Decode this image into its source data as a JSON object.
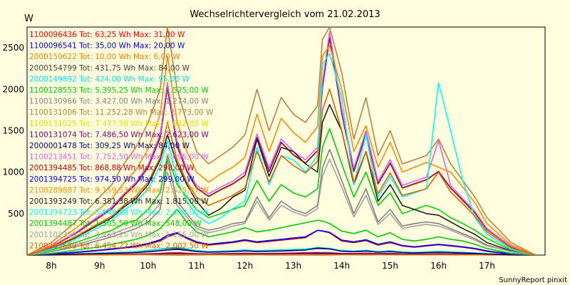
{
  "chart_data": {
    "type": "line",
    "title": "Wechselrichtervergleich vom 21.02.2013",
    "ylabel": "W",
    "xlabel": "",
    "footer": "SunnyReport pinxit",
    "ylim": [
      0,
      2750
    ],
    "xlim": [
      7.5,
      18.2
    ],
    "yticks": [
      500,
      1000,
      1500,
      2000,
      2500
    ],
    "xticks": [
      {
        "v": 8,
        "label": "8h"
      },
      {
        "v": 9,
        "label": "9h"
      },
      {
        "v": 10,
        "label": "10h"
      },
      {
        "v": 11,
        "label": "11h"
      },
      {
        "v": 12,
        "label": "12h"
      },
      {
        "v": 13,
        "label": "13h"
      },
      {
        "v": 14,
        "label": "14h"
      },
      {
        "v": 15,
        "label": "15h"
      },
      {
        "v": 16,
        "label": "16h"
      },
      {
        "v": 17,
        "label": "17h"
      }
    ],
    "grid": true,
    "x": [
      7.5,
      8.0,
      8.5,
      9.0,
      9.25,
      9.5,
      9.75,
      10.0,
      10.25,
      10.4,
      10.6,
      10.8,
      11.0,
      11.25,
      11.5,
      11.75,
      12.0,
      12.25,
      12.5,
      12.75,
      13.0,
      13.25,
      13.5,
      13.6,
      13.75,
      14.0,
      14.25,
      14.5,
      14.75,
      15.0,
      15.25,
      15.5,
      15.75,
      16.0,
      16.25,
      16.5,
      16.75,
      17.0,
      17.5,
      18.0
    ],
    "series": [
      {
        "name": "1100096436",
        "legend": "1100096436 Tot: 63,25 Wh Max: 31,00 W",
        "color": "#ff0000",
        "values": [
          0,
          2,
          4,
          6,
          8,
          10,
          12,
          15,
          20,
          25,
          28,
          22,
          16,
          14,
          16,
          18,
          22,
          18,
          20,
          22,
          24,
          28,
          31,
          30,
          28,
          20,
          18,
          22,
          16,
          20,
          14,
          12,
          14,
          16,
          14,
          12,
          10,
          6,
          2,
          0
        ]
      },
      {
        "name": "1100096541",
        "legend": "1100096541 Tot: 35,00 Wh Max: 20,00 W",
        "color": "#0000cc",
        "values": [
          0,
          1,
          2,
          4,
          5,
          6,
          7,
          9,
          12,
          15,
          18,
          14,
          10,
          9,
          10,
          11,
          13,
          11,
          12,
          13,
          15,
          17,
          20,
          19,
          18,
          12,
          10,
          13,
          10,
          12,
          9,
          8,
          9,
          10,
          9,
          8,
          6,
          4,
          1,
          0
        ]
      },
      {
        "name": "2000150622",
        "legend": "2000150622 Tot: 10,00 Wh Max: 6,00 W",
        "color": "#ff8000",
        "values": [
          0,
          0,
          1,
          1,
          2,
          2,
          3,
          3,
          4,
          5,
          6,
          5,
          4,
          3,
          3,
          4,
          4,
          3,
          4,
          4,
          5,
          5,
          6,
          6,
          5,
          3,
          3,
          4,
          3,
          3,
          2,
          2,
          2,
          3,
          2,
          2,
          2,
          1,
          0,
          0
        ]
      },
      {
        "name": "2000154799",
        "legend": "2000154799 Tot: 431,75 Wh Max: 84,00 W",
        "color": "#404040",
        "values": [
          0,
          5,
          15,
          25,
          30,
          35,
          40,
          55,
          70,
          80,
          84,
          70,
          50,
          40,
          45,
          50,
          60,
          50,
          55,
          60,
          65,
          70,
          80,
          78,
          75,
          50,
          45,
          55,
          40,
          50,
          35,
          30,
          35,
          40,
          35,
          30,
          25,
          15,
          5,
          0
        ]
      },
      {
        "name": "2000149892",
        "legend": "2000149892 Tot: 424,00 Wh Max: 95,00 W",
        "color": "#00e0e0",
        "values": [
          0,
          5,
          15,
          25,
          30,
          35,
          42,
          55,
          70,
          85,
          95,
          75,
          55,
          42,
          48,
          52,
          62,
          52,
          58,
          62,
          68,
          74,
          90,
          88,
          82,
          55,
          48,
          58,
          42,
          52,
          38,
          32,
          38,
          45,
          38,
          32,
          26,
          16,
          5,
          0
        ]
      },
      {
        "name": "1100128553",
        "legend": "1100128553 Tot: 5.395,25 Wh Max: 1.525,00 W",
        "color": "#00d000",
        "values": [
          0,
          60,
          150,
          250,
          300,
          380,
          420,
          550,
          750,
          1200,
          850,
          700,
          550,
          450,
          500,
          550,
          600,
          900,
          650,
          850,
          750,
          700,
          800,
          1300,
          1525,
          1100,
          700,
          1000,
          600,
          750,
          500,
          550,
          600,
          550,
          450,
          380,
          300,
          200,
          60,
          0
        ]
      },
      {
        "name": "1100130966",
        "legend": "1100130966 Tot: 3.427,00 Wh Max: 1.274,00 W",
        "color": "#808080",
        "values": [
          0,
          40,
          100,
          180,
          220,
          270,
          320,
          400,
          550,
          1150,
          650,
          500,
          350,
          300,
          330,
          380,
          400,
          700,
          450,
          650,
          550,
          500,
          600,
          1050,
          1274,
          900,
          500,
          800,
          400,
          550,
          350,
          380,
          400,
          380,
          320,
          260,
          200,
          120,
          40,
          0
        ]
      },
      {
        "name": "1100131006",
        "legend": "1100131006 Tot: 11.252,28 Wh Max: 2.773,00 W",
        "color": "#c08040",
        "values": [
          0,
          150,
          400,
          700,
          850,
          1100,
          1300,
          1600,
          2000,
          2773,
          2000,
          1600,
          1250,
          1100,
          1200,
          1300,
          1450,
          2000,
          1500,
          1900,
          1700,
          1600,
          1800,
          2600,
          2773,
          2200,
          1400,
          1900,
          1200,
          1500,
          1100,
          1150,
          1200,
          1400,
          1100,
          900,
          700,
          450,
          150,
          0
        ]
      },
      {
        "name": "1100131025",
        "legend": "1100131025 Tot: 7.477,50 Wh Max: 2.612,00 W",
        "color": "#e0e000",
        "values": [
          0,
          100,
          250,
          450,
          550,
          700,
          850,
          1050,
          1400,
          2000,
          1300,
          1000,
          800,
          700,
          780,
          850,
          950,
          1400,
          1000,
          1350,
          1200,
          1100,
          1250,
          2000,
          2612,
          1700,
          1000,
          1450,
          850,
          1100,
          800,
          850,
          900,
          1000,
          800,
          650,
          500,
          300,
          100,
          0
        ]
      },
      {
        "name": "1100131074",
        "legend": "1100131074 Tot: 7.486,50 Wh Max: 2.623,00 W",
        "color": "#800080",
        "values": [
          0,
          100,
          260,
          460,
          560,
          720,
          860,
          1060,
          1420,
          2020,
          1320,
          1010,
          810,
          710,
          790,
          860,
          960,
          1420,
          1010,
          1360,
          1210,
          1110,
          1260,
          2020,
          2623,
          1710,
          1010,
          1460,
          860,
          1110,
          810,
          860,
          910,
          1010,
          810,
          660,
          510,
          310,
          100,
          0
        ]
      },
      {
        "name": "2000001478",
        "legend": "2000001478 Tot: 309,25 Wh Max: 84,00 W",
        "color": "#000080",
        "values": [
          0,
          4,
          10,
          18,
          22,
          26,
          30,
          40,
          52,
          62,
          70,
          58,
          42,
          34,
          38,
          42,
          50,
          42,
          46,
          50,
          54,
          60,
          84,
          80,
          74,
          46,
          40,
          48,
          34,
          42,
          30,
          26,
          30,
          34,
          30,
          26,
          20,
          12,
          4,
          0
        ]
      },
      {
        "name": "1100213451",
        "legend": "1100213451 Tot: 7.752,50 Wh Max: 2.695,00 W",
        "color": "#e060e0",
        "values": [
          0,
          105,
          270,
          480,
          580,
          740,
          880,
          1090,
          1460,
          2080,
          1360,
          1040,
          840,
          740,
          820,
          890,
          1000,
          1460,
          1050,
          1400,
          1250,
          1150,
          1300,
          2080,
          2695,
          1760,
          1050,
          1500,
          890,
          1150,
          840,
          890,
          940,
          1380,
          840,
          680,
          530,
          320,
          105,
          0
        ]
      },
      {
        "name": "2001394485",
        "legend": "2001394485 Tot: 868,88 Wh Max: 298,00 W",
        "color": "#c00000",
        "values": [
          0,
          10,
          30,
          55,
          70,
          85,
          100,
          130,
          170,
          220,
          260,
          200,
          150,
          120,
          135,
          150,
          175,
          150,
          165,
          180,
          195,
          210,
          298,
          290,
          270,
          170,
          150,
          175,
          120,
          150,
          110,
          95,
          110,
          125,
          110,
          95,
          75,
          45,
          10,
          0
        ]
      },
      {
        "name": "2001394725",
        "legend": "2001394725 Tot: 974,50 Wh Max: 299,00 W",
        "color": "#0000ff",
        "values": [
          0,
          12,
          35,
          60,
          75,
          90,
          110,
          140,
          185,
          240,
          270,
          210,
          160,
          130,
          145,
          160,
          185,
          160,
          175,
          190,
          205,
          220,
          299,
          292,
          275,
          180,
          160,
          185,
          130,
          160,
          115,
          100,
          115,
          130,
          115,
          100,
          80,
          50,
          12,
          0
        ]
      },
      {
        "name": "2100289887",
        "legend": "2100289887 Tot: 9.159,53 Wh Max: 2.525,07 W",
        "color": "#ff8c00",
        "values": [
          0,
          120,
          320,
          560,
          680,
          870,
          1030,
          1280,
          1700,
          2400,
          1600,
          1250,
          1000,
          880,
          980,
          1060,
          1180,
          1700,
          1250,
          1650,
          1480,
          1360,
          1550,
          2400,
          2525,
          2000,
          1250,
          1560,
          1060,
          1360,
          1000,
          1060,
          1120,
          1060,
          1000,
          820,
          630,
          380,
          120,
          0
        ]
      },
      {
        "name": "2001393249",
        "legend": "2001393249 Tot: 6.381,38 Wh Max: 1.815,00 W",
        "color": "#202020",
        "values": [
          0,
          80,
          210,
          370,
          450,
          580,
          680,
          850,
          1150,
          1450,
          1100,
          850,
          650,
          480,
          560,
          700,
          780,
          1400,
          950,
          1300,
          1250,
          1100,
          1000,
          1600,
          1815,
          1500,
          850,
          1250,
          650,
          850,
          600,
          550,
          500,
          480,
          400,
          320,
          250,
          150,
          50,
          0
        ]
      },
      {
        "name": "2001394723",
        "legend": "2001394723 Tot: 5.848,38 Wh Max: 2.430,00 W",
        "color": "#00ffff",
        "values": [
          0,
          70,
          190,
          340,
          420,
          540,
          640,
          800,
          1080,
          1380,
          900,
          650,
          480,
          380,
          450,
          560,
          650,
          1300,
          850,
          1200,
          1150,
          1000,
          1200,
          2300,
          2430,
          1900,
          850,
          1450,
          700,
          950,
          700,
          750,
          800,
          2080,
          1500,
          900,
          450,
          250,
          70,
          0
        ]
      },
      {
        "name": "2001394487",
        "legend": "2001394487 Tot: 1.305,50 Wh Max: 548,00 W",
        "color": "#00c800",
        "values": [
          0,
          20,
          60,
          100,
          130,
          160,
          190,
          240,
          320,
          420,
          548,
          400,
          280,
          220,
          250,
          280,
          330,
          280,
          300,
          330,
          360,
          390,
          420,
          410,
          380,
          290,
          260,
          300,
          220,
          270,
          190,
          170,
          190,
          220,
          190,
          170,
          130,
          80,
          20,
          0
        ]
      },
      {
        "name": "2001102359",
        "legend": "2001102359 Tot: 3.263,25 Wh Max: 1.155,00 W",
        "color": "#a0a0a0",
        "values": [
          0,
          45,
          120,
          210,
          250,
          310,
          360,
          460,
          620,
          1000,
          600,
          460,
          320,
          270,
          300,
          350,
          380,
          650,
          420,
          600,
          520,
          470,
          560,
          950,
          1155,
          820,
          460,
          720,
          370,
          500,
          320,
          350,
          370,
          350,
          300,
          240,
          180,
          110,
          45,
          0
        ]
      },
      {
        "name": "2100285689",
        "legend": "2100285689 Tot: 6.454,22 Wh Max: 2.002,50 W",
        "color": "#e06000",
        "values": [
          0,
          85,
          220,
          390,
          470,
          600,
          710,
          880,
          1180,
          1600,
          1150,
          880,
          700,
          600,
          660,
          720,
          810,
          1250,
          880,
          1200,
          1080,
          990,
          1130,
          1750,
          2002,
          1500,
          880,
          1250,
          740,
          990,
          720,
          760,
          800,
          1000,
          760,
          620,
          470,
          280,
          85,
          0
        ]
      }
    ]
  }
}
